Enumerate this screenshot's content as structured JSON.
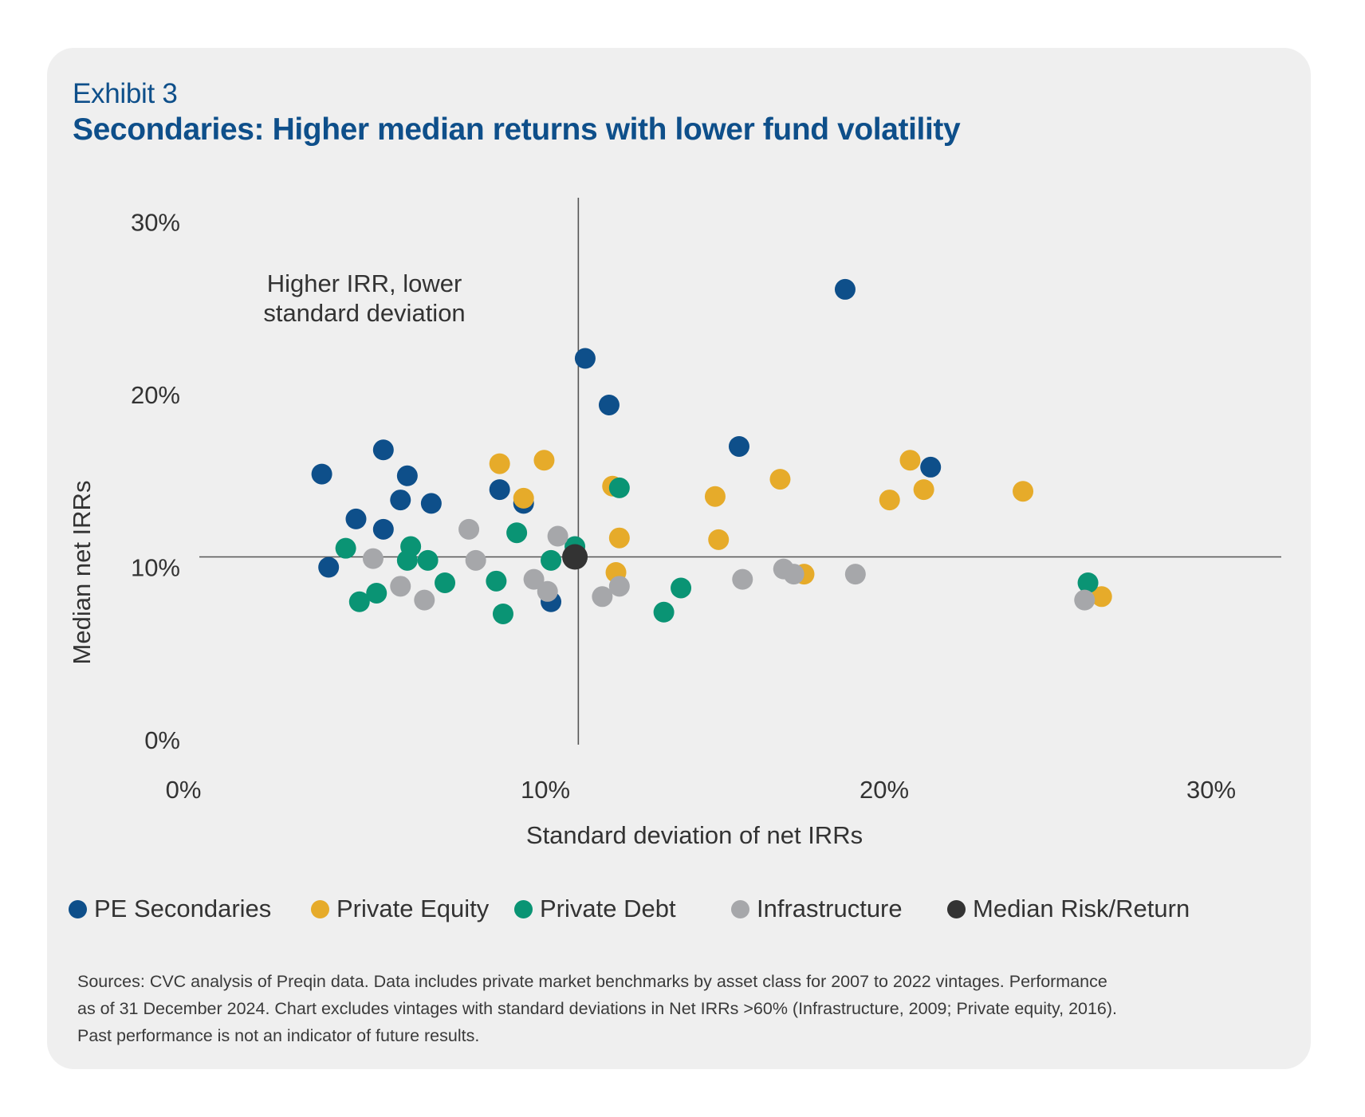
{
  "header": {
    "exhibit": "Exhibit 3",
    "title": "Secondaries: Higher median returns with lower fund volatility"
  },
  "colors": {
    "pe_secondaries": "#0e4f8a",
    "private_equity": "#e6ab2a",
    "private_debt": "#0a9474",
    "infrastructure": "#a6a7aa",
    "median": "#333333",
    "title": "#0e4f8a",
    "card_background": "#efefef"
  },
  "legend": {
    "items": [
      {
        "label": "PE Secondaries",
        "color_key": "pe_secondaries"
      },
      {
        "label": "Private Equity",
        "color_key": "private_equity"
      },
      {
        "label": "Private Debt",
        "color_key": "private_debt"
      },
      {
        "label": "Infrastructure",
        "color_key": "infrastructure"
      },
      {
        "label": "Median Risk/Return",
        "color_key": "median"
      }
    ]
  },
  "footer": {
    "lines": [
      "Sources: CVC analysis of Preqin data. Data includes private market benchmarks by asset class for 2007 to 2022  vintages. Performance",
      "as of 31 December 2024. Chart excludes vintages with standard deviations in Net IRRs >60% (Infrastructure, 2009; Private equity, 2016).",
      "Past performance is not an indicator of future results."
    ]
  },
  "chart_data": {
    "type": "scatter",
    "title": "Secondaries: Higher median returns with lower fund volatility",
    "xlabel": "Standard deviation of net IRRs",
    "ylabel": "Median net IRRs",
    "xlim": [
      0,
      30
    ],
    "ylim": [
      0,
      30
    ],
    "x_ticks": [
      0,
      10,
      20,
      30
    ],
    "x_tick_labels": [
      "0%",
      "10%",
      "20%",
      "30%"
    ],
    "y_ticks": [
      0,
      10,
      20,
      30
    ],
    "y_tick_labels": [
      "0%",
      "10%",
      "20%",
      "30%"
    ],
    "grid": false,
    "legend_position": "bottom",
    "annotation": {
      "lines": [
        "Higher IRR, lower",
        "standard deviation"
      ],
      "quadrant": "top-left"
    },
    "reference_lines": {
      "x": 11.5,
      "y": 10.6
    },
    "series": [
      {
        "name": "PE Secondaries",
        "color_key": "pe_secondaries",
        "points": [
          [
            4.0,
            15.4
          ],
          [
            5.8,
            16.8
          ],
          [
            6.5,
            15.3
          ],
          [
            6.3,
            13.9
          ],
          [
            7.2,
            13.7
          ],
          [
            5.0,
            12.8
          ],
          [
            5.8,
            12.2
          ],
          [
            4.2,
            10.0
          ],
          [
            9.2,
            14.5
          ],
          [
            9.9,
            13.7
          ],
          [
            10.7,
            8.0
          ],
          [
            11.7,
            22.1
          ],
          [
            12.4,
            19.4
          ],
          [
            16.2,
            17.0
          ],
          [
            19.3,
            26.1
          ],
          [
            21.8,
            15.8
          ]
        ]
      },
      {
        "name": "Private Equity",
        "color_key": "private_equity",
        "points": [
          [
            9.2,
            16.0
          ],
          [
            10.5,
            16.2
          ],
          [
            9.9,
            14.0
          ],
          [
            12.5,
            14.7
          ],
          [
            12.7,
            11.7
          ],
          [
            12.6,
            9.7
          ],
          [
            15.5,
            14.1
          ],
          [
            15.6,
            11.6
          ],
          [
            17.4,
            15.1
          ],
          [
            18.1,
            9.6
          ],
          [
            20.6,
            13.9
          ],
          [
            21.2,
            16.2
          ],
          [
            21.6,
            14.5
          ],
          [
            24.5,
            14.4
          ],
          [
            26.8,
            8.3
          ]
        ]
      },
      {
        "name": "Private Debt",
        "color_key": "private_debt",
        "points": [
          [
            4.7,
            11.1
          ],
          [
            6.6,
            11.2
          ],
          [
            6.5,
            10.4
          ],
          [
            7.1,
            10.4
          ],
          [
            7.6,
            9.1
          ],
          [
            5.1,
            8.0
          ],
          [
            5.6,
            8.5
          ],
          [
            9.1,
            9.2
          ],
          [
            9.7,
            12.0
          ],
          [
            10.7,
            10.4
          ],
          [
            9.3,
            7.3
          ],
          [
            11.4,
            11.2
          ],
          [
            12.7,
            14.6
          ],
          [
            14.5,
            8.8
          ],
          [
            14.0,
            7.4
          ],
          [
            26.4,
            9.1
          ]
        ]
      },
      {
        "name": "Infrastructure",
        "color_key": "infrastructure",
        "points": [
          [
            5.5,
            10.5
          ],
          [
            6.3,
            8.9
          ],
          [
            7.0,
            8.1
          ],
          [
            8.3,
            12.2
          ],
          [
            8.5,
            10.4
          ],
          [
            10.2,
            9.3
          ],
          [
            10.6,
            8.6
          ],
          [
            10.9,
            11.8
          ],
          [
            12.2,
            8.3
          ],
          [
            12.7,
            8.9
          ],
          [
            16.3,
            9.3
          ],
          [
            17.5,
            9.9
          ],
          [
            17.8,
            9.6
          ],
          [
            19.6,
            9.6
          ],
          [
            26.3,
            8.1
          ]
        ]
      },
      {
        "name": "Median Risk/Return",
        "color_key": "median",
        "points": [
          [
            11.4,
            10.6
          ]
        ]
      }
    ]
  }
}
